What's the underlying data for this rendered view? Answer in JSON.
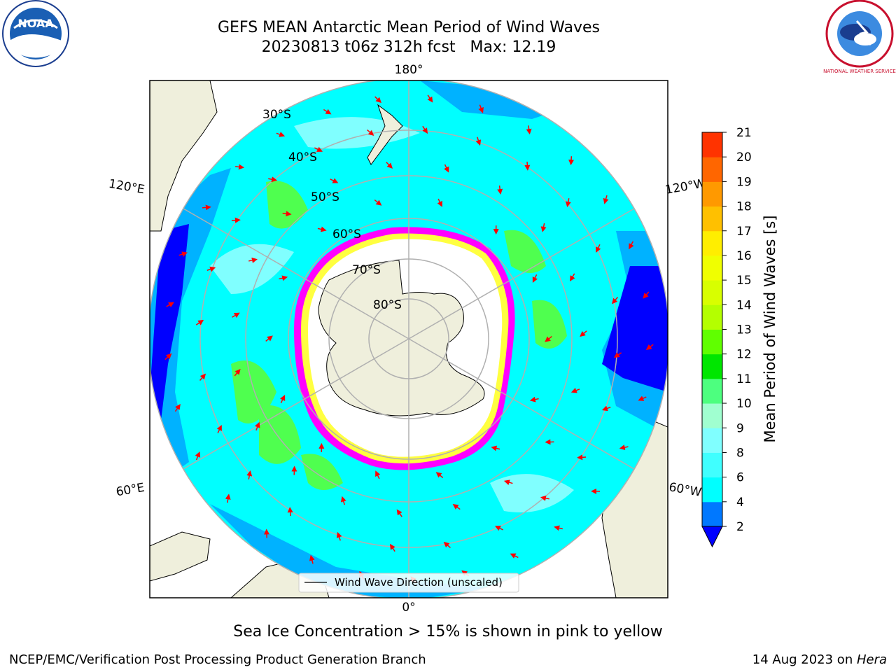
{
  "title": {
    "line1": "GEFS MEAN Antarctic Mean Period of Wind Waves",
    "line2": "20230813 t06z 312h fcst   Max: 12.19"
  },
  "map": {
    "projection": "south-polar-stereographic",
    "longitude_labels": {
      "top": "180°",
      "bottom": "0°",
      "upper_left": "120°E",
      "upper_right": "120°W",
      "lower_left": "60°E",
      "lower_right": "60°W"
    },
    "latitude_labels": [
      "30°S",
      "40°S",
      "50°S",
      "60°S",
      "70°S",
      "80°S"
    ],
    "colors": {
      "land": "#efefdc",
      "ocean_main": "#00ffff",
      "ocean_dark": "#00b2ff",
      "ocean_blue": "#0000ff",
      "ocean_light": "#80ffff",
      "waves_green": "#4fff4f",
      "ice_pink": "#ff00ff",
      "ice_yellow": "#ffff40",
      "arrows": "#ff0000",
      "grid": "#b0b0b0"
    },
    "legend_label": "Wind Wave Direction (unscaled)"
  },
  "colorbar": {
    "label": "Mean Period of Wind Waves [s]",
    "ticks": [
      "2",
      "4",
      "6",
      "8",
      "9",
      "10",
      "11",
      "12",
      "13",
      "14",
      "15",
      "16",
      "17",
      "18",
      "19",
      "20",
      "21"
    ],
    "colors": [
      "#0078ff",
      "#00ffff",
      "#40ffff",
      "#80ffff",
      "#a0ffd0",
      "#4dff7f",
      "#00e600",
      "#60ff00",
      "#b4ff00",
      "#d8ff00",
      "#f0ff00",
      "#ffee00",
      "#ffc000",
      "#ff9900",
      "#ff6600",
      "#ff3300",
      "#ff0000"
    ],
    "under_color": "#0000ff"
  },
  "footer": {
    "note": "Sea Ice Concentration > 15% is shown in pink to yellow",
    "left": "NCEP/EMC/Verification Post Processing Product Generation Branch",
    "right_date": "14 Aug 2023 on ",
    "right_host": "Hera"
  },
  "logos": {
    "left": "NOAA",
    "right": "NATIONAL WEATHER SERVICE"
  }
}
